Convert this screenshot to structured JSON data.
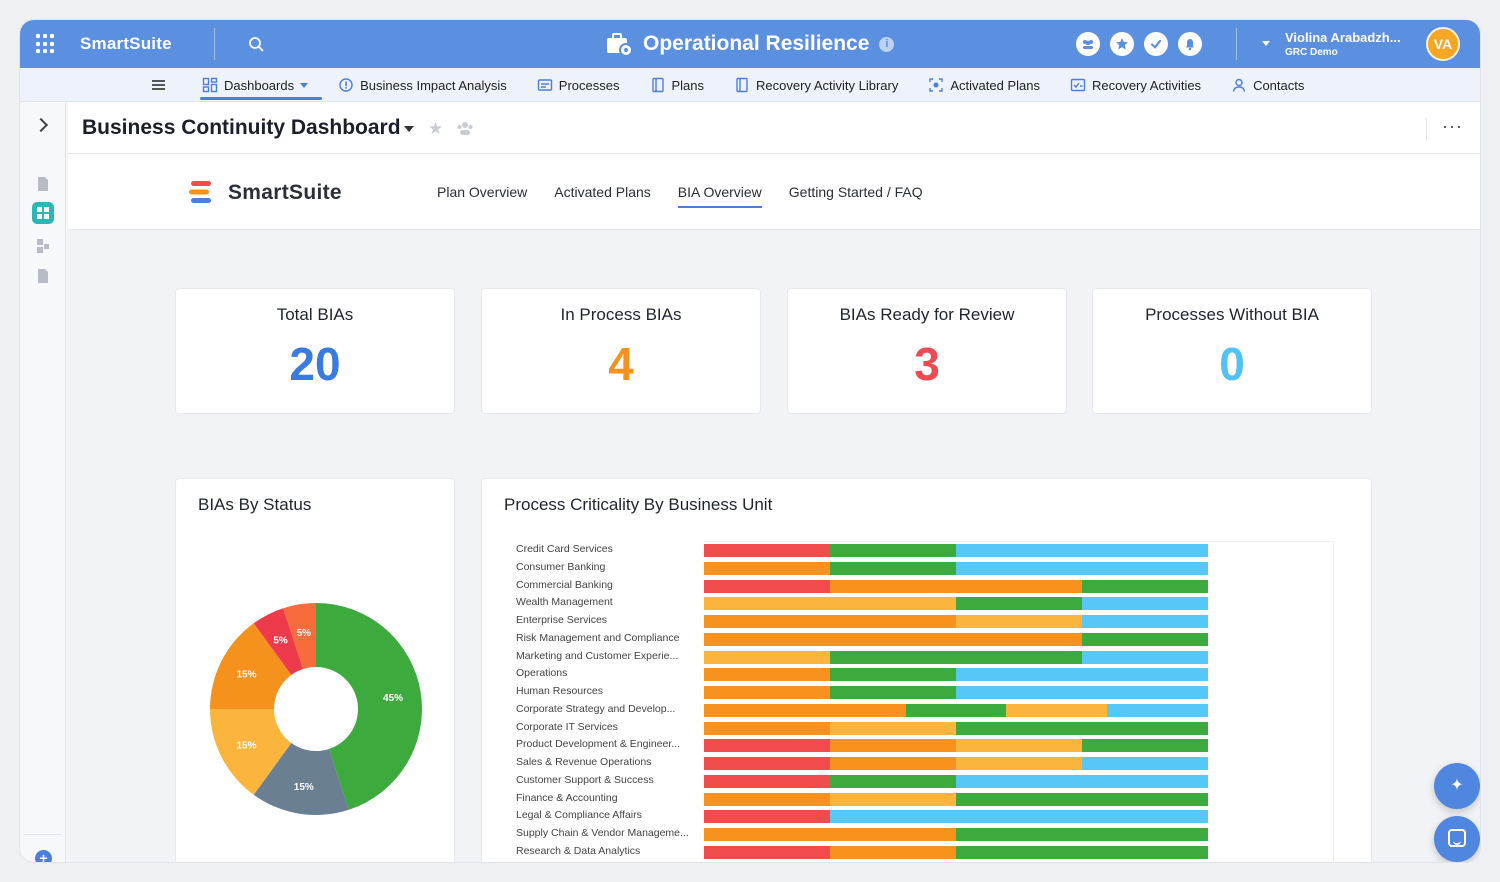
{
  "app": {
    "brand": "SmartSuite",
    "title": "Operational Resilience",
    "info": "i",
    "user_name": "Violina Arabadzh...",
    "user_org": "GRC Demo",
    "avatar_initials": "VA"
  },
  "nav": {
    "items": [
      {
        "label": "Dashboards",
        "icon": "dashboard-icon"
      },
      {
        "label": "Business Impact Analysis",
        "icon": "impact-icon"
      },
      {
        "label": "Processes",
        "icon": "process-icon"
      },
      {
        "label": "Plans",
        "icon": "plan-icon"
      },
      {
        "label": "Recovery Activity Library",
        "icon": "library-icon"
      },
      {
        "label": "Activated Plans",
        "icon": "activated-icon"
      },
      {
        "label": "Recovery Activities",
        "icon": "activities-icon"
      },
      {
        "label": "Contacts",
        "icon": "contacts-icon"
      }
    ]
  },
  "dashboard": {
    "title": "Business Continuity Dashboard",
    "logo_text": "SmartSuite",
    "tabs": [
      "Plan Overview",
      "Activated Plans",
      "BIA Overview",
      "Getting Started / FAQ"
    ],
    "active_tab": "BIA Overview"
  },
  "kpis": [
    {
      "label": "Total BIAs",
      "value": "20",
      "color": "#3a7be0"
    },
    {
      "label": "In Process BIAs",
      "value": "4",
      "color": "#f5921e"
    },
    {
      "label": "BIAs Ready for Review",
      "value": "3",
      "color": "#ef4a52"
    },
    {
      "label": "Processes Without BIA",
      "value": "0",
      "color": "#4fc3f7"
    }
  ],
  "widgets": {
    "status_title": "BIAs By Status",
    "criticality_title": "Process Criticality By Business Unit"
  },
  "chart_data": [
    {
      "type": "pie",
      "title": "BIAs By Status",
      "slices": [
        {
          "value": 45,
          "label": "45%",
          "color": "#3daa3d"
        },
        {
          "value": 15,
          "label": "15%",
          "color": "#6b7f93"
        },
        {
          "value": 15,
          "label": "15%",
          "color": "#fbb53c"
        },
        {
          "value": 15,
          "label": "15%",
          "color": "#f5921e"
        },
        {
          "value": 5,
          "label": "5%",
          "color": "#ee3b4b"
        },
        {
          "value": 5,
          "label": "5%",
          "color": "#f76b3c"
        }
      ]
    },
    {
      "type": "bar",
      "orientation": "horizontal",
      "stacked": true,
      "title": "Process Criticality By Business Unit",
      "colors": {
        "red": "#f04c4c",
        "orange": "#f8921e",
        "yellow": "#fbb53c",
        "green": "#3daa3d",
        "blue": "#55c8f7"
      },
      "categories": [
        "Credit Card Services",
        "Consumer Banking",
        "Commercial Banking",
        "Wealth Management",
        "Enterprise Services",
        "Risk Management and Compliance",
        "Marketing and Customer Experie...",
        "Operations",
        "Human Resources",
        "Corporate Strategy and Develop...",
        "Corporate IT Services",
        "Product Development & Engineer...",
        "Sales & Revenue Operations",
        "Customer Support & Success",
        "Finance & Accounting",
        "Legal & Compliance Affairs",
        "Supply Chain & Vendor Manageme...",
        "Research & Data Analytics"
      ],
      "rows": [
        [
          [
            "red",
            1
          ],
          [
            "green",
            1
          ],
          [
            "blue",
            2
          ]
        ],
        [
          [
            "orange",
            1
          ],
          [
            "green",
            1
          ],
          [
            "blue",
            2
          ]
        ],
        [
          [
            "red",
            1
          ],
          [
            "orange",
            2
          ],
          [
            "green",
            1
          ]
        ],
        [
          [
            "yellow",
            2
          ],
          [
            "green",
            1
          ],
          [
            "blue",
            1
          ]
        ],
        [
          [
            "orange",
            2
          ],
          [
            "yellow",
            1
          ],
          [
            "blue",
            1
          ]
        ],
        [
          [
            "orange",
            3
          ],
          [
            "green",
            1
          ]
        ],
        [
          [
            "yellow",
            1
          ],
          [
            "green",
            2
          ],
          [
            "blue",
            1
          ]
        ],
        [
          [
            "orange",
            1
          ],
          [
            "green",
            1
          ],
          [
            "blue",
            2
          ]
        ],
        [
          [
            "orange",
            1
          ],
          [
            "green",
            1
          ],
          [
            "blue",
            2
          ]
        ],
        [
          [
            "orange",
            1
          ],
          [
            "orange",
            1
          ],
          [
            "green",
            1
          ],
          [
            "yellow",
            1
          ],
          [
            "blue",
            1
          ]
        ],
        [
          [
            "orange",
            1
          ],
          [
            "yellow",
            1
          ],
          [
            "green",
            2
          ]
        ],
        [
          [
            "red",
            1
          ],
          [
            "orange",
            1
          ],
          [
            "yellow",
            1
          ],
          [
            "green",
            1
          ]
        ],
        [
          [
            "red",
            1
          ],
          [
            "orange",
            1
          ],
          [
            "yellow",
            1
          ],
          [
            "blue",
            1
          ]
        ],
        [
          [
            "red",
            1
          ],
          [
            "green",
            1
          ],
          [
            "blue",
            2
          ]
        ],
        [
          [
            "orange",
            1
          ],
          [
            "yellow",
            1
          ],
          [
            "green",
            2
          ]
        ],
        [
          [
            "red",
            1
          ],
          [
            "blue",
            3
          ]
        ],
        [
          [
            "orange",
            2
          ],
          [
            "green",
            2
          ]
        ],
        [
          [
            "red",
            1
          ],
          [
            "orange",
            1
          ],
          [
            "green",
            2
          ]
        ]
      ]
    }
  ]
}
